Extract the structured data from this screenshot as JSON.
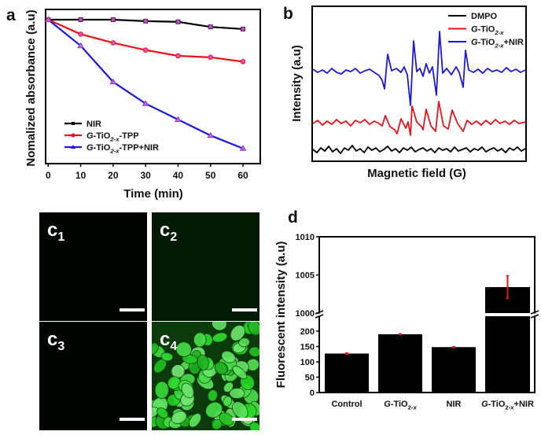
{
  "chart_data": [
    {
      "panel": "a",
      "type": "line",
      "xlabel": "Time (min)",
      "ylabel": "Nomalized absorbance (a.u)",
      "x": [
        0,
        10,
        20,
        30,
        40,
        50,
        60
      ],
      "xticks": [
        "0",
        "10",
        "20",
        "30",
        "40",
        "50",
        "60"
      ],
      "xlim": [
        0,
        60
      ],
      "ylim": [
        0,
        1.07
      ],
      "y_ticks_shown": false,
      "grid": false,
      "legend_position": "bottom-left",
      "series": [
        {
          "name": [
            {
              "t": "NIR"
            }
          ],
          "color": "#000000",
          "marker": "square",
          "values": [
            1.0,
            1.0,
            1.0,
            0.99,
            0.985,
            0.95,
            0.935
          ]
        },
        {
          "name": [
            {
              "t": "G",
              "i": true
            },
            {
              "t": "-TiO"
            },
            {
              "t": "2-x",
              "sub": true,
              "i": true
            },
            {
              "t": "-TPP"
            }
          ],
          "color": "#e8141c",
          "marker": "circle",
          "values": [
            1.0,
            0.9,
            0.84,
            0.79,
            0.75,
            0.74,
            0.71
          ]
        },
        {
          "name": [
            {
              "t": "G",
              "i": true
            },
            {
              "t": "-TiO"
            },
            {
              "t": "2-x",
              "sub": true,
              "i": true
            },
            {
              "t": "-TPP+NIR"
            }
          ],
          "color": "#1a1adc",
          "marker": "triangle",
          "values": [
            1.0,
            0.82,
            0.57,
            0.42,
            0.31,
            0.2,
            0.11
          ]
        }
      ]
    },
    {
      "panel": "b",
      "type": "line",
      "xlabel": "Magnetic field (G)",
      "ylabel": "Intensity (a.u)",
      "ticks_shown": false,
      "legend_position": "top-right",
      "series": [
        {
          "name": [
            {
              "t": "DMPO"
            }
          ],
          "color": "#000000",
          "points": [
            [
              0,
              15
            ],
            [
              5,
              11
            ],
            [
              10,
              17
            ],
            [
              15,
              13
            ],
            [
              20,
              19
            ],
            [
              25,
              12
            ],
            [
              30,
              16
            ],
            [
              35,
              10
            ],
            [
              40,
              17
            ],
            [
              45,
              14
            ],
            [
              50,
              20
            ],
            [
              55,
              13
            ],
            [
              60,
              16
            ],
            [
              65,
              11
            ],
            [
              70,
              18
            ],
            [
              75,
              14
            ],
            [
              80,
              17
            ],
            [
              85,
              12
            ],
            [
              90,
              15
            ],
            [
              95,
              19
            ],
            [
              100,
              13
            ],
            [
              105,
              16
            ],
            [
              110,
              11
            ],
            [
              115,
              17
            ],
            [
              120,
              14
            ],
            [
              125,
              18
            ],
            [
              130,
              12
            ],
            [
              135,
              15
            ],
            [
              140,
              17
            ],
            [
              145,
              13
            ],
            [
              150,
              16
            ],
            [
              155,
              11
            ],
            [
              160,
              17
            ],
            [
              165,
              14
            ],
            [
              170,
              16
            ],
            [
              175,
              12
            ],
            [
              180,
              18
            ],
            [
              185,
              13
            ],
            [
              190,
              15
            ],
            [
              195,
              17
            ],
            [
              200,
              12
            ],
            [
              205,
              16
            ],
            [
              210,
              14
            ],
            [
              215,
              18
            ],
            [
              220,
              12
            ],
            [
              225,
              15
            ],
            [
              230,
              17
            ],
            [
              235,
              13
            ],
            [
              240,
              16
            ],
            [
              245,
              11
            ],
            [
              250,
              17
            ],
            [
              255,
              14
            ],
            [
              260,
              18
            ],
            [
              265,
              13
            ],
            [
              270,
              16
            ]
          ]
        },
        {
          "name": [
            {
              "t": "G",
              "i": true
            },
            {
              "t": "-TiO"
            },
            {
              "t": "2-x",
              "sub": true,
              "i": true
            }
          ],
          "color": "#e8141c",
          "points": [
            [
              0,
              48
            ],
            [
              6,
              52
            ],
            [
              12,
              46
            ],
            [
              18,
              51
            ],
            [
              24,
              47
            ],
            [
              30,
              53
            ],
            [
              36,
              48
            ],
            [
              42,
              51
            ],
            [
              48,
              45
            ],
            [
              54,
              52
            ],
            [
              60,
              49
            ],
            [
              66,
              53
            ],
            [
              72,
              47
            ],
            [
              78,
              51
            ],
            [
              84,
              48
            ],
            [
              88,
              45
            ],
            [
              92,
              58
            ],
            [
              98,
              44
            ],
            [
              104,
              40
            ],
            [
              107,
              35
            ],
            [
              112,
              54
            ],
            [
              118,
              42
            ],
            [
              121,
              50
            ],
            [
              124,
              33
            ],
            [
              126,
              70
            ],
            [
              132,
              50
            ],
            [
              138,
              44
            ],
            [
              140,
              40
            ],
            [
              144,
              66
            ],
            [
              150,
              45
            ],
            [
              156,
              38
            ],
            [
              160,
              76
            ],
            [
              166,
              45
            ],
            [
              172,
              41
            ],
            [
              177,
              65
            ],
            [
              184,
              48
            ],
            [
              191,
              38
            ],
            [
              196,
              52
            ],
            [
              202,
              47
            ],
            [
              208,
              51
            ],
            [
              214,
              46
            ],
            [
              220,
              52
            ],
            [
              226,
              47
            ],
            [
              232,
              53
            ],
            [
              238,
              48
            ],
            [
              244,
              51
            ],
            [
              250,
              47
            ],
            [
              256,
              52
            ],
            [
              262,
              48
            ],
            [
              270,
              50
            ]
          ]
        },
        {
          "name": [
            {
              "t": "G",
              "i": true
            },
            {
              "t": "-TiO"
            },
            {
              "t": "2-x",
              "sub": true,
              "i": true
            },
            {
              "t": "+NIR"
            }
          ],
          "color": "#1a1adc",
          "points": [
            [
              0,
              117
            ],
            [
              6,
              113
            ],
            [
              12,
              116
            ],
            [
              18,
              112
            ],
            [
              24,
              118
            ],
            [
              30,
              113
            ],
            [
              36,
              111
            ],
            [
              42,
              116
            ],
            [
              48,
              114
            ],
            [
              54,
              118
            ],
            [
              60,
              112
            ],
            [
              66,
              115
            ],
            [
              72,
              117
            ],
            [
              78,
              113
            ],
            [
              84,
              109
            ],
            [
              88,
              103
            ],
            [
              91,
              92
            ],
            [
              95,
              136
            ],
            [
              100,
              115
            ],
            [
              106,
              118
            ],
            [
              112,
              113
            ],
            [
              116,
              120
            ],
            [
              120,
              110
            ],
            [
              124,
              71
            ],
            [
              128,
              153
            ],
            [
              132,
              114
            ],
            [
              136,
              118
            ],
            [
              140,
              108
            ],
            [
              144,
              124
            ],
            [
              148,
              112
            ],
            [
              152,
              120
            ],
            [
              157,
              84
            ],
            [
              161,
              165
            ],
            [
              165,
              112
            ],
            [
              170,
              118
            ],
            [
              176,
              110
            ],
            [
              182,
              120
            ],
            [
              186,
              113
            ],
            [
              191,
              94
            ],
            [
              194,
              141
            ],
            [
              198,
              116
            ],
            [
              204,
              113
            ],
            [
              210,
              117
            ],
            [
              216,
              112
            ],
            [
              222,
              118
            ],
            [
              228,
              114
            ],
            [
              234,
              116
            ],
            [
              240,
              113
            ],
            [
              246,
              119
            ],
            [
              252,
              114
            ],
            [
              258,
              117
            ],
            [
              264,
              113
            ],
            [
              270,
              116
            ]
          ]
        }
      ]
    },
    {
      "panel": "d",
      "type": "bar",
      "ylabel": "Fluorescent intensity (a.u)",
      "categories": [
        [
          {
            "t": "Control"
          }
        ],
        [
          {
            "t": "G",
            "i": true
          },
          {
            "t": "-TiO"
          },
          {
            "t": "2-",
            "sub": true
          },
          {
            "t": "x",
            "sub": true,
            "i": true
          }
        ],
        [
          {
            "t": "NIR"
          }
        ],
        [
          {
            "t": "G",
            "i": true
          },
          {
            "t": "-TiO"
          },
          {
            "t": "2-",
            "sub": true
          },
          {
            "t": "x",
            "sub": true,
            "i": true
          },
          {
            "t": "+NIR"
          }
        ]
      ],
      "values": [
        127,
        190,
        148,
        1003.4
      ],
      "errors": [
        2,
        1.5,
        1.5,
        1.5
      ],
      "bar_color": "#000000",
      "error_color": "#e8141c",
      "y_axis_break": [
        200,
        1000
      ],
      "ylim_lower": [
        0,
        200
      ],
      "ylim_upper": [
        1000,
        1010
      ],
      "yticks_lower": [
        "0",
        "50",
        "100",
        "150",
        "200"
      ],
      "yticks_upper": [
        "1000",
        "1005",
        "1010"
      ]
    }
  ],
  "panels": {
    "a": "a",
    "b": "b",
    "c": "c",
    "d": "d"
  },
  "micrographs": [
    {
      "label": "c",
      "sub": "1",
      "brightness": "dark"
    },
    {
      "label": "c",
      "sub": "2",
      "brightness": "faint"
    },
    {
      "label": "c",
      "sub": "3",
      "brightness": "dark"
    },
    {
      "label": "c",
      "sub": "4",
      "brightness": "bright-green"
    }
  ]
}
